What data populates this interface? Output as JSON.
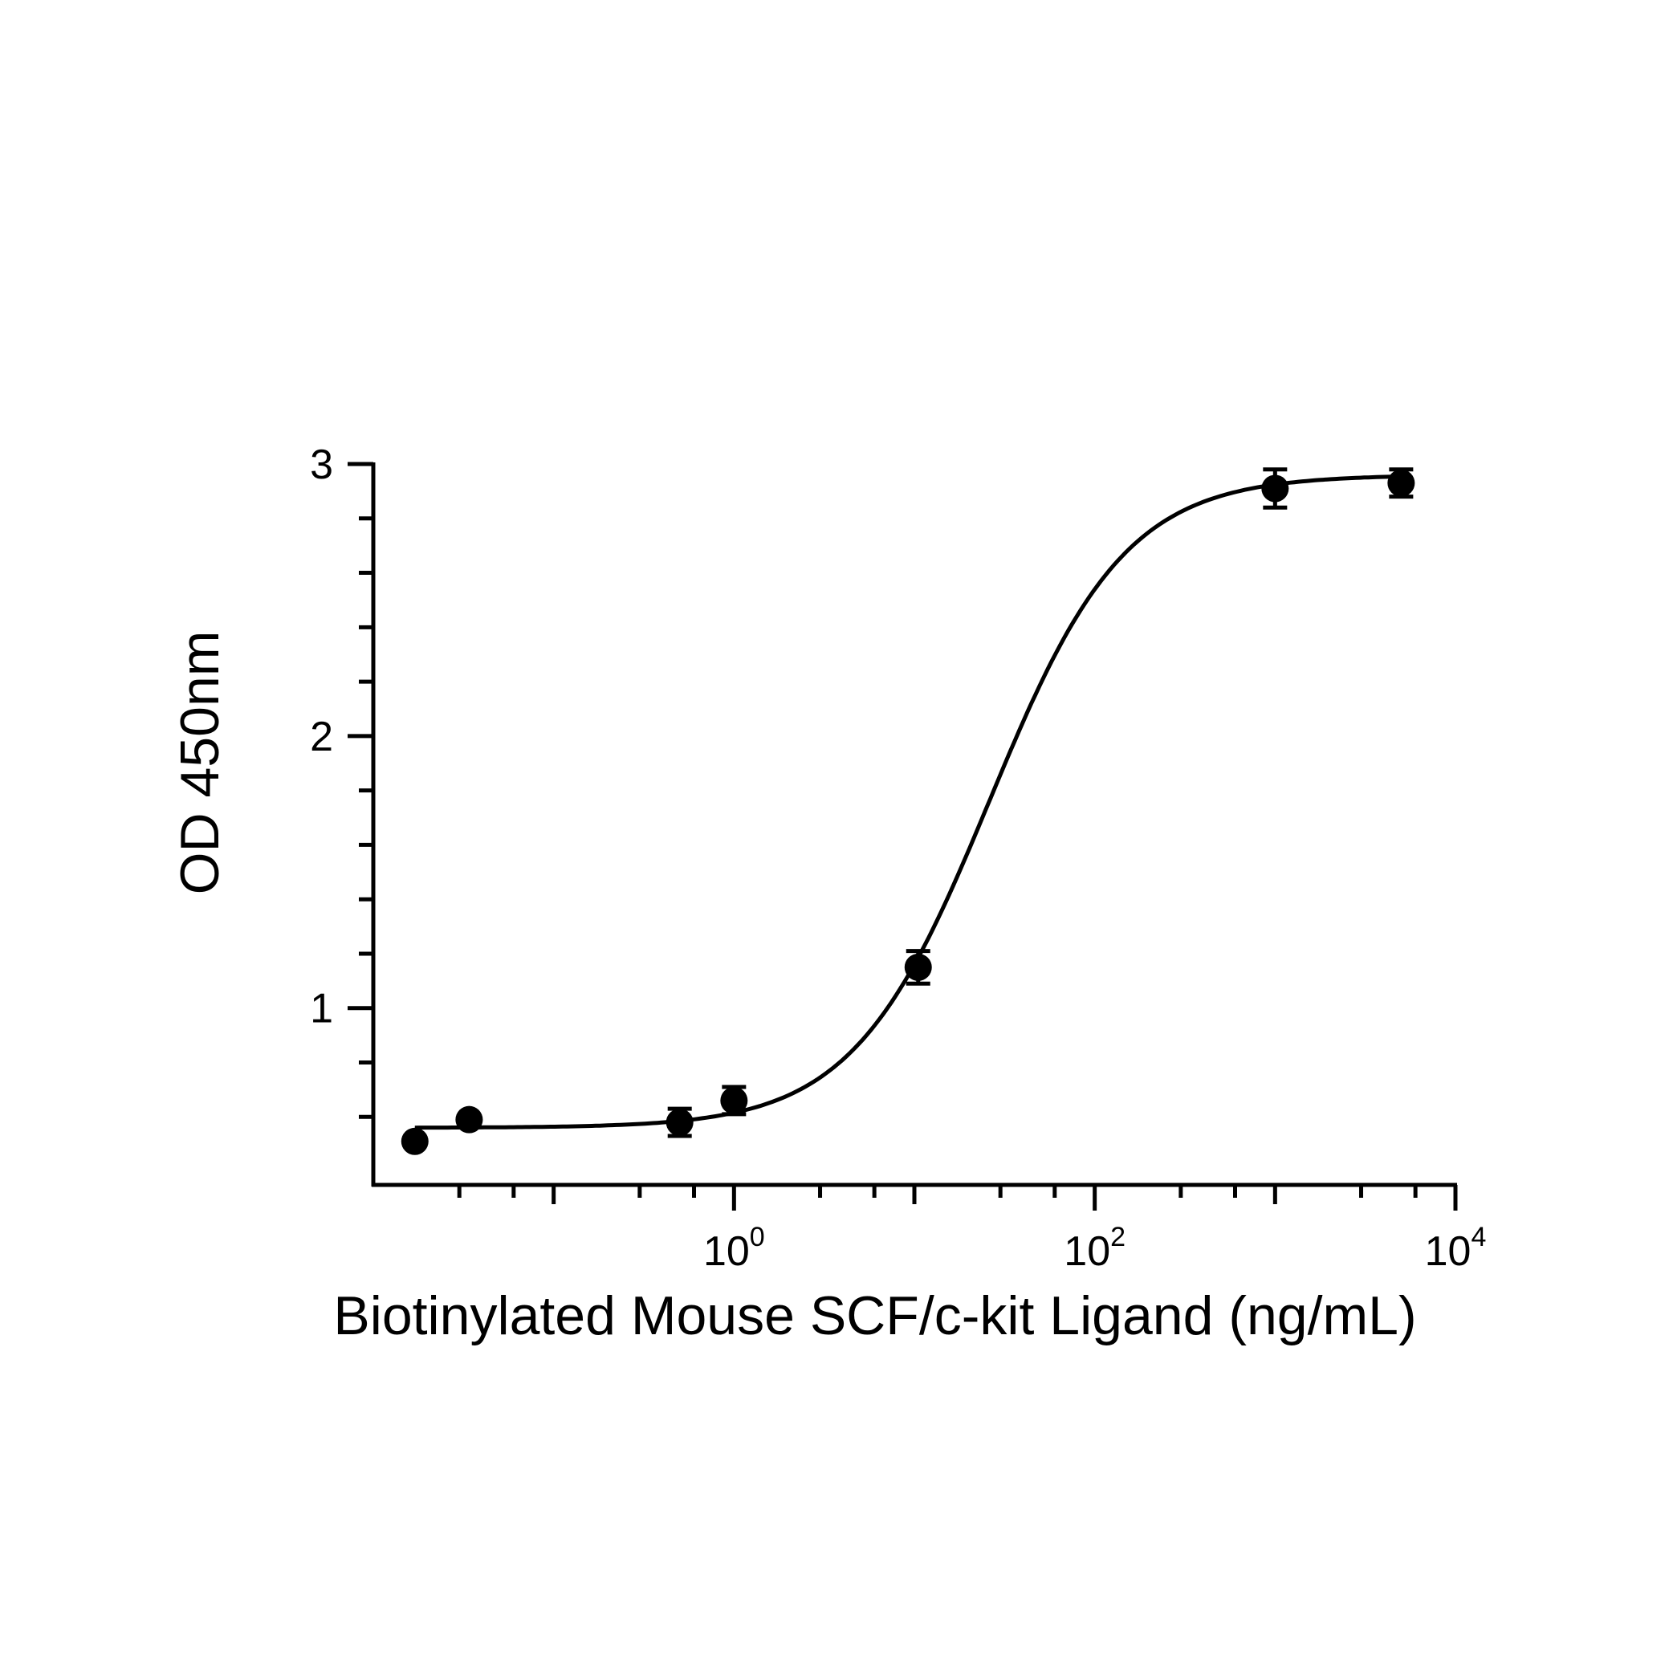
{
  "chart_data": {
    "type": "scatter",
    "title": "",
    "xlabel": "Biotinylated Mouse SCF/c-kit Ligand (ng/mL)",
    "ylabel": "OD 450nm",
    "x_scale": "log",
    "xlim": [
      0.01,
      10000
    ],
    "ylim": [
      0.35,
      3.0
    ],
    "x_ticks": [
      {
        "value": 1,
        "base": "10",
        "exp": "0"
      },
      {
        "value": 100,
        "base": "10",
        "exp": "2"
      },
      {
        "value": 10000,
        "base": "10",
        "exp": "4"
      }
    ],
    "y_ticks": [
      {
        "value": 1,
        "label": "1"
      },
      {
        "value": 2,
        "label": "2"
      },
      {
        "value": 3,
        "label": "3"
      }
    ],
    "grid": false,
    "legend": "none",
    "points": [
      {
        "x": 0.017,
        "y": 0.51,
        "err": 0.0
      },
      {
        "x": 0.034,
        "y": 0.59,
        "err": 0.0
      },
      {
        "x": 0.5,
        "y": 0.58,
        "err": 0.05
      },
      {
        "x": 1.0,
        "y": 0.66,
        "err": 0.05
      },
      {
        "x": 10.5,
        "y": 1.15,
        "err": 0.06
      },
      {
        "x": 1000,
        "y": 2.91,
        "err": 0.07
      },
      {
        "x": 5000,
        "y": 2.93,
        "err": 0.05
      }
    ],
    "fit": {
      "model": "4PL",
      "bottom": 0.56,
      "top": 2.96,
      "ec50": 26,
      "hill": 1.15
    },
    "color": "#000000"
  }
}
